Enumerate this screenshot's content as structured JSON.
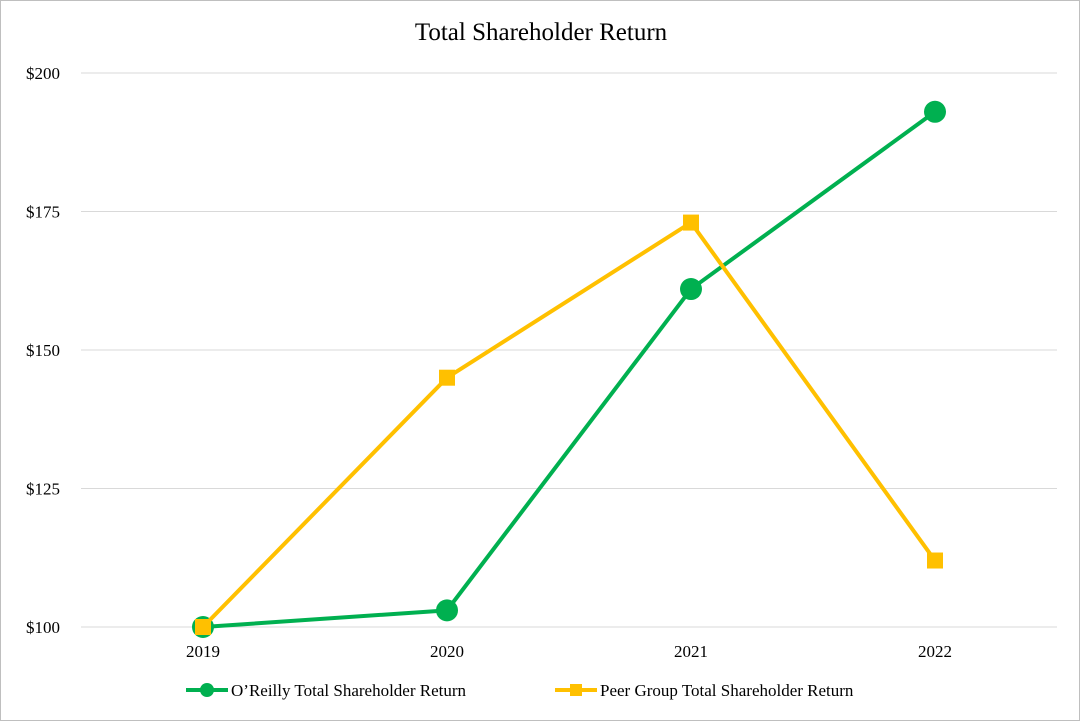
{
  "chart_data": {
    "type": "line",
    "title": "Total Shareholder Return",
    "xlabel": "",
    "ylabel": "",
    "categories": [
      "2019",
      "2020",
      "2021",
      "2022"
    ],
    "ylim": [
      100,
      200
    ],
    "yticks": [
      100,
      125,
      150,
      175,
      200
    ],
    "ytick_labels": [
      "$100",
      "$125",
      "$150",
      "$175",
      "$200"
    ],
    "grid": true,
    "legend_position": "bottom",
    "series": [
      {
        "name": "O’Reilly Total Shareholder Return",
        "values": [
          100,
          103,
          161,
          193
        ],
        "color": "#00b050",
        "marker": "circle"
      },
      {
        "name": "Peer Group Total Shareholder Return",
        "values": [
          100,
          145,
          173,
          112
        ],
        "color": "#ffc000",
        "marker": "square"
      }
    ]
  }
}
